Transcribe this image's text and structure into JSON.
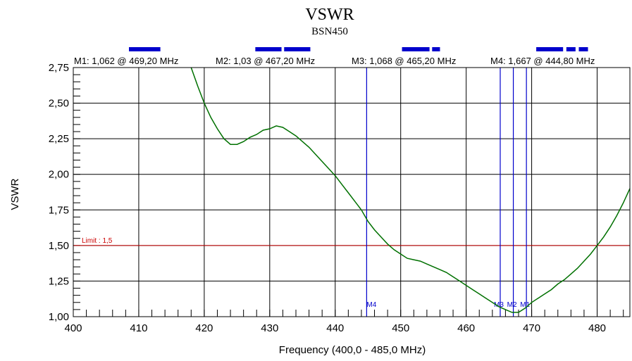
{
  "chart_data": {
    "type": "line",
    "title": "VSWR",
    "subtitle": "BSN450",
    "xlabel": "Frequency (400,0 - 485,0 MHz)",
    "ylabel": "VSWR",
    "xlim": [
      400,
      485
    ],
    "ylim": [
      1.0,
      2.75
    ],
    "x_ticks": [
      400,
      410,
      420,
      430,
      440,
      450,
      460,
      470,
      480
    ],
    "x_tick_labels": [
      "400",
      "410",
      "420",
      "430",
      "440",
      "450",
      "460",
      "470",
      "480"
    ],
    "y_ticks": [
      1.0,
      1.25,
      1.5,
      1.75,
      2.0,
      2.25,
      2.5,
      2.75
    ],
    "y_tick_labels": [
      "1,00",
      "1,25",
      "1,50",
      "1,75",
      "2,00",
      "2,25",
      "2,50",
      "2,75"
    ],
    "grid": true,
    "line_color": "#007000",
    "marker_color": "#0000cc",
    "limit_color": "#cc0000",
    "limit": {
      "value": 1.5,
      "label": "Limit : 1,5"
    },
    "series": [
      {
        "x": [
          418.0,
          419.0,
          420.0,
          421.0,
          422.0,
          423.0,
          424.0,
          425.0,
          426.0,
          427.0,
          428.0,
          429.0,
          430.0,
          431.0,
          432.0,
          433.0,
          434.0,
          435.0,
          436.0,
          437.0,
          438.0,
          439.0,
          440.0,
          441.0,
          442.0,
          443.0,
          444.0,
          445.0,
          446.0,
          447.0,
          448.0,
          449.0,
          450.0,
          451.0,
          452.0,
          453.0,
          454.0,
          455.0,
          456.0,
          457.0,
          458.0,
          459.0,
          460.0,
          461.0,
          462.0,
          463.0,
          464.0,
          465.0,
          466.0,
          467.0,
          468.0,
          469.0,
          470.0,
          471.0,
          472.0,
          473.0,
          474.0,
          475.0,
          476.0,
          477.0,
          478.0,
          479.0,
          480.0,
          481.0,
          482.0,
          483.0,
          484.0,
          485.0
        ],
        "y": [
          2.75,
          2.62,
          2.5,
          2.4,
          2.32,
          2.25,
          2.21,
          2.21,
          2.23,
          2.26,
          2.28,
          2.31,
          2.32,
          2.34,
          2.33,
          2.3,
          2.27,
          2.23,
          2.19,
          2.14,
          2.09,
          2.04,
          1.99,
          1.93,
          1.87,
          1.81,
          1.75,
          1.67,
          1.61,
          1.56,
          1.51,
          1.47,
          1.44,
          1.41,
          1.4,
          1.39,
          1.37,
          1.35,
          1.33,
          1.31,
          1.28,
          1.25,
          1.22,
          1.19,
          1.16,
          1.13,
          1.1,
          1.07,
          1.05,
          1.03,
          1.03,
          1.06,
          1.1,
          1.13,
          1.16,
          1.19,
          1.23,
          1.26,
          1.3,
          1.34,
          1.39,
          1.44,
          1.5,
          1.56,
          1.63,
          1.71,
          1.8,
          1.9
        ]
      }
    ],
    "markers": [
      {
        "name": "M1",
        "x": 469.2,
        "label": "M1: 1,062   @ 469,20 MHz"
      },
      {
        "name": "M2",
        "x": 467.2,
        "label": "M2: 1,03   @ 467,20 MHz"
      },
      {
        "name": "M3",
        "x": 465.2,
        "label": "M3: 1,068   @ 465,20 MHz"
      },
      {
        "name": "M4",
        "x": 444.8,
        "label": "M4: 1,667   @ 444,80 MHz"
      }
    ],
    "band_bars": [
      {
        "x_start": 408.5,
        "x_end": 413.3
      },
      {
        "x_start": 427.8,
        "x_end": 431.8
      },
      {
        "x_start": 432.2,
        "x_end": 436.2
      },
      {
        "x_start": 450.2,
        "x_end": 454.4
      },
      {
        "x_start": 454.8,
        "x_end": 456.0
      },
      {
        "x_start": 470.7,
        "x_end": 474.8
      },
      {
        "x_start": 475.3,
        "x_end": 476.7
      },
      {
        "x_start": 477.2,
        "x_end": 478.6
      }
    ]
  }
}
